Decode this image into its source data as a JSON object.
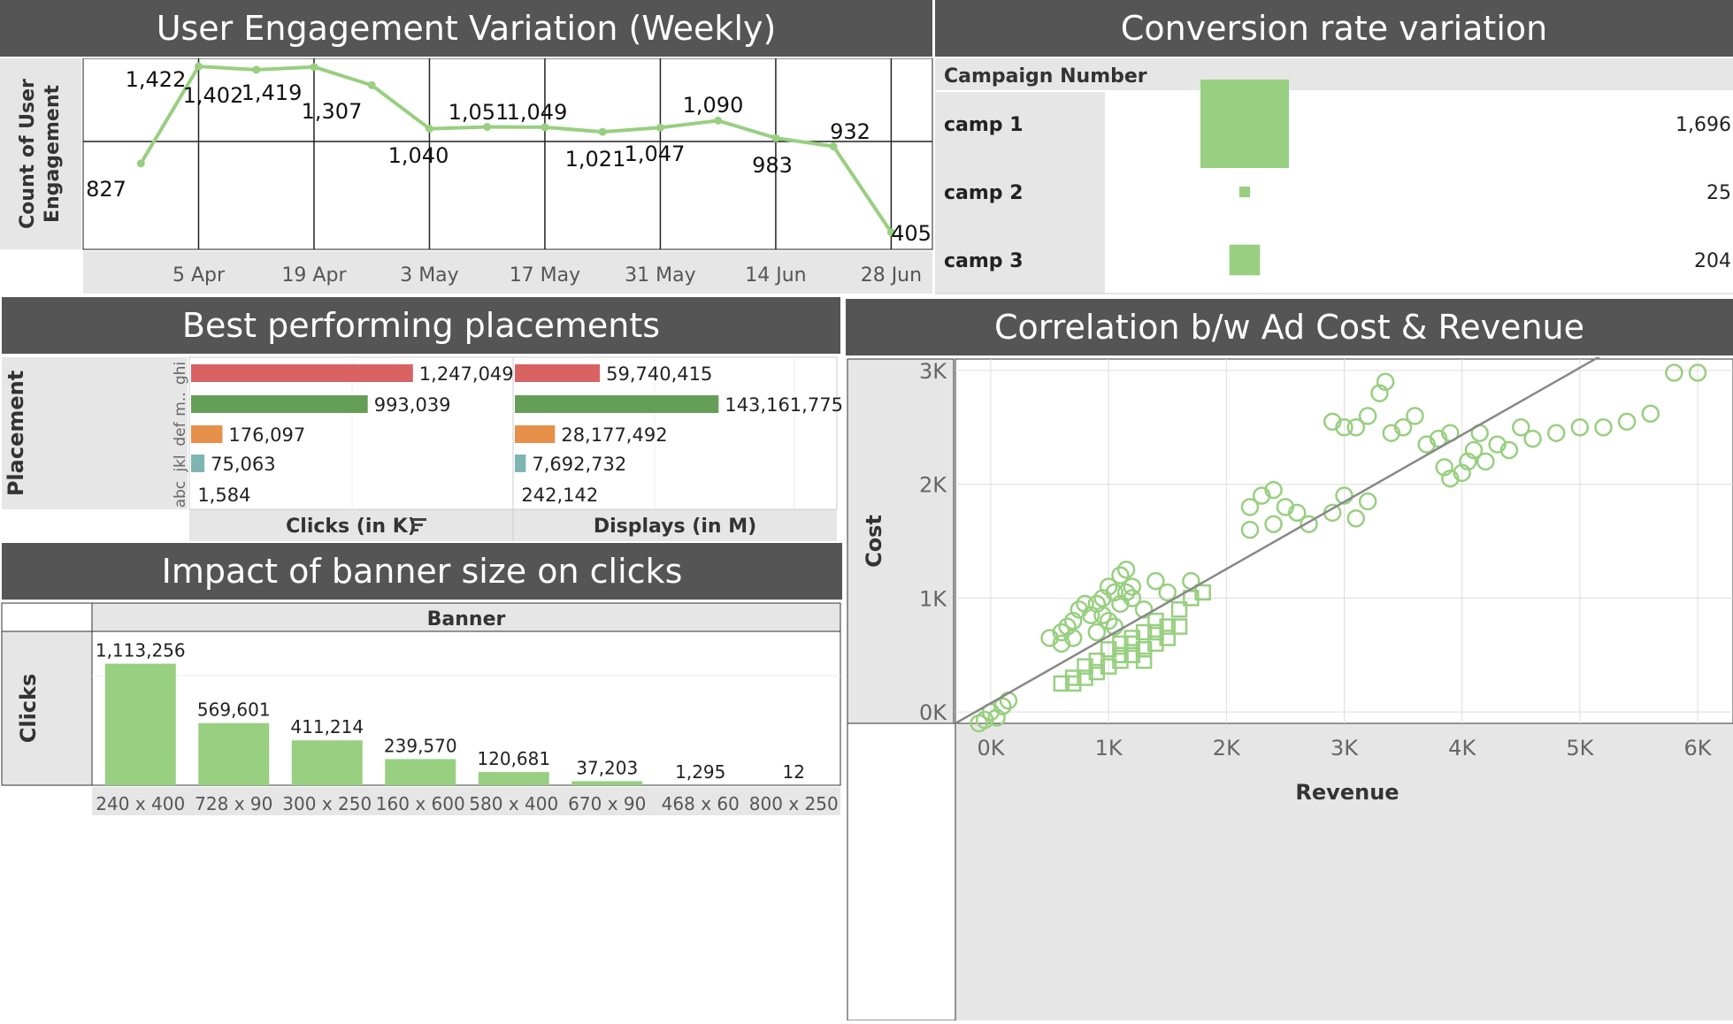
{
  "colors": {
    "title_bg": "#555555",
    "accent_green": "#98cf80",
    "red": "#d96363",
    "dark_green": "#659e57",
    "orange": "#e6904a",
    "teal": "#7eb5b3",
    "header_gray": "#e6e6e6"
  },
  "titles": {
    "engagement": "User Engagement Variation (Weekly)",
    "conversion": "Conversion rate variation",
    "placements": "Best performing placements",
    "correlation": "Correlation b/w Ad Cost & Revenue",
    "banner": "Impact of banner size on clicks"
  },
  "chart_data": [
    {
      "id": "engagement",
      "type": "line",
      "ylabel": "Count of User Engagement",
      "x_ticks": [
        "5 Apr",
        "19 Apr",
        "3 May",
        "17 May",
        "31 May",
        "14 Jun",
        "28 Jun"
      ],
      "x": [
        "2023-03-29",
        "2023-04-05",
        "2023-04-12",
        "2023-04-19",
        "2023-04-26",
        "2023-05-03",
        "2023-05-10",
        "2023-05-17",
        "2023-05-24",
        "2023-05-31",
        "2023-06-07",
        "2023-06-14",
        "2023-06-21",
        "2023-06-28"
      ],
      "values": [
        827,
        1422,
        1402,
        1419,
        1307,
        1040,
        1051,
        1049,
        1021,
        1047,
        1090,
        983,
        932,
        405
      ],
      "labels": [
        "827",
        "1,422",
        "1,402",
        "1,419",
        "1,307",
        "1,040",
        "1,051",
        "1,049",
        "1,021",
        "1,047",
        "1,090",
        "983",
        "932",
        "405"
      ],
      "ylim": [
        300,
        1450
      ]
    },
    {
      "id": "conversion",
      "type": "table",
      "header": "Campaign Number",
      "categories": [
        "camp 1",
        "camp 2",
        "camp 3"
      ],
      "values": [
        1696,
        25,
        204
      ],
      "labels": [
        "1,696",
        "25",
        "204"
      ]
    },
    {
      "id": "placements",
      "type": "bar",
      "ylabel": "Placement",
      "categories": [
        "ghi",
        "m..",
        "def",
        "jkl",
        "abc"
      ],
      "bar_colors": [
        "#d96363",
        "#659e57",
        "#e6904a",
        "#7eb5b3",
        "#b8b8b8"
      ],
      "series": [
        {
          "name": "Clicks (in K)",
          "values": [
            1247049,
            993039,
            176097,
            75063,
            1584
          ],
          "labels": [
            "1,247,049",
            "993,039",
            "176,097",
            "75,063",
            "1,584"
          ],
          "xlim": [
            0,
            1800000
          ]
        },
        {
          "name": "Displays (in M)",
          "values": [
            59740415,
            143161775,
            28177492,
            7692732,
            242142
          ],
          "labels": [
            "59,740,415",
            "143,161,775",
            "28,177,492",
            "7,692,732",
            "242,142"
          ],
          "xlim": [
            0,
            225000000
          ]
        }
      ]
    },
    {
      "id": "correlation",
      "type": "scatter",
      "xlabel": "Revenue",
      "ylabel": "Cost",
      "x_ticks": [
        "0K",
        "1K",
        "2K",
        "3K",
        "4K",
        "5K",
        "6K"
      ],
      "y_ticks": [
        "0K",
        "1K",
        "2K",
        "3K"
      ],
      "xlim": [
        -300,
        6300
      ],
      "ylim": [
        -100,
        3100
      ],
      "trend": [
        [
          -300,
          -100
        ],
        [
          5300,
          3200
        ]
      ],
      "series": [
        {
          "name": "circles",
          "marker": "circle",
          "points": [
            [
              5800,
              2980
            ],
            [
              6000,
              2980
            ],
            [
              5600,
              2620
            ],
            [
              5400,
              2550
            ],
            [
              5200,
              2500
            ],
            [
              5000,
              2500
            ],
            [
              4800,
              2450
            ],
            [
              4600,
              2400
            ],
            [
              4500,
              2500
            ],
            [
              4400,
              2300
            ],
            [
              4200,
              2200
            ],
            [
              4100,
              2300
            ],
            [
              4000,
              2100
            ],
            [
              3900,
              2450
            ],
            [
              3800,
              2400
            ],
            [
              3700,
              2350
            ],
            [
              3600,
              2600
            ],
            [
              3500,
              2500
            ],
            [
              3400,
              2450
            ],
            [
              3200,
              2600
            ],
            [
              3100,
              2500
            ],
            [
              3300,
              2800
            ],
            [
              3350,
              2900
            ],
            [
              2900,
              2550
            ],
            [
              3000,
              2500
            ],
            [
              4150,
              2450
            ],
            [
              4300,
              2350
            ],
            [
              4050,
              2200
            ],
            [
              3850,
              2150
            ],
            [
              3900,
              2050
            ],
            [
              2300,
              1900
            ],
            [
              2400,
              1950
            ],
            [
              2200,
              1800
            ],
            [
              2500,
              1800
            ],
            [
              2600,
              1750
            ],
            [
              2400,
              1650
            ],
            [
              2700,
              1650
            ],
            [
              2200,
              1600
            ],
            [
              3000,
              1900
            ],
            [
              3200,
              1850
            ],
            [
              2900,
              1750
            ],
            [
              3100,
              1700
            ],
            [
              1400,
              1150
            ],
            [
              1700,
              1150
            ],
            [
              1500,
              1050
            ],
            [
              1000,
              1100
            ],
            [
              1100,
              1200
            ],
            [
              1150,
              1250
            ],
            [
              1050,
              1050
            ],
            [
              950,
              1000
            ],
            [
              900,
              950
            ],
            [
              800,
              950
            ],
            [
              750,
              900
            ],
            [
              700,
              800
            ],
            [
              650,
              750
            ],
            [
              600,
              700
            ],
            [
              700,
              650
            ],
            [
              850,
              850
            ],
            [
              1000,
              800
            ],
            [
              1100,
              950
            ],
            [
              1200,
              1000
            ],
            [
              1300,
              900
            ],
            [
              900,
              700
            ],
            [
              1050,
              750
            ],
            [
              500,
              650
            ],
            [
              600,
              600
            ],
            [
              950,
              850
            ],
            [
              1150,
              1050
            ],
            [
              1200,
              1100
            ],
            [
              -100,
              -100
            ],
            [
              0,
              0
            ],
            [
              50,
              -50
            ],
            [
              100,
              50
            ],
            [
              150,
              100
            ],
            [
              -50,
              -70
            ]
          ]
        },
        {
          "name": "squares",
          "marker": "square",
          "points": [
            [
              1400,
              800
            ],
            [
              1500,
              750
            ],
            [
              1600,
              900
            ],
            [
              1700,
              1000
            ],
            [
              1800,
              1050
            ],
            [
              1500,
              650
            ],
            [
              1400,
              600
            ],
            [
              1300,
              550
            ],
            [
              1200,
              500
            ],
            [
              1100,
              450
            ],
            [
              1000,
              400
            ],
            [
              900,
              350
            ],
            [
              800,
              300
            ],
            [
              700,
              250
            ],
            [
              1300,
              700
            ],
            [
              1200,
              650
            ],
            [
              1100,
              600
            ],
            [
              1400,
              700
            ],
            [
              1600,
              750
            ],
            [
              1000,
              550
            ],
            [
              1100,
              500
            ],
            [
              900,
              450
            ],
            [
              1200,
              600
            ],
            [
              800,
              400
            ],
            [
              1300,
              450
            ],
            [
              700,
              300
            ],
            [
              600,
              250
            ]
          ]
        }
      ]
    },
    {
      "id": "banner",
      "type": "bar",
      "header": "Banner",
      "ylabel": "Clicks",
      "categories": [
        "240 x 400",
        "728 x 90",
        "300 x 250",
        "160 x 600",
        "580 x 400",
        "670 x 90",
        "468 x 60",
        "800 x 250"
      ],
      "values": [
        1113256,
        569601,
        411214,
        239570,
        120681,
        37203,
        1295,
        12
      ],
      "labels": [
        "1,113,256",
        "569,601",
        "411,214",
        "239,570",
        "120,681",
        "37,203",
        "1,295",
        "12"
      ],
      "ylim": [
        0,
        1280000
      ]
    }
  ]
}
